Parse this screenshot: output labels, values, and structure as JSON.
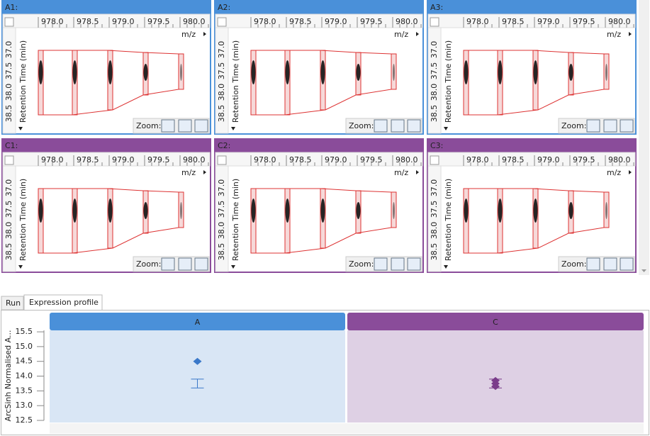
{
  "panels": [
    {
      "label": "A1:",
      "color": "#4a90d9"
    },
    {
      "label": "A2:",
      "color": "#4a90d9"
    },
    {
      "label": "A3:",
      "color": "#4a90d9"
    },
    {
      "label": "C1:",
      "color": "#8a4c9a"
    },
    {
      "label": "C2:",
      "color": "#8a4c9a"
    },
    {
      "label": "C3:",
      "color": "#8a4c9a"
    }
  ],
  "mz_axis": {
    "ticks": [
      "978.0",
      "978.5",
      "979.0",
      "979.5",
      "980.0"
    ],
    "label": "m/z"
  },
  "rt_axis": {
    "ticks": [
      "37.0",
      "37.5",
      "38.0",
      "38.5"
    ],
    "label": "Retention Time (min)"
  },
  "zoom_label": "Zoom:",
  "tabs": [
    "Run",
    "Expression profile"
  ],
  "profile": {
    "y_label": "ArcSinh Normalised A...",
    "ylim": [
      12.5,
      15.55
    ],
    "yticks": [
      {
        "value": 12.5,
        "label": "12.5"
      },
      {
        "value": 13,
        "label": "13.0"
      },
      {
        "value": 13.5,
        "label": "13.5"
      },
      {
        "value": 14,
        "label": "14.0"
      },
      {
        "value": 14.5,
        "label": "14.5"
      },
      {
        "value": 15,
        "label": "15.0"
      },
      {
        "value": 15.5,
        "label": "15.5"
      }
    ],
    "groups": [
      {
        "name": "A",
        "color": "#4a90d9",
        "background": "#d9e6f5",
        "marker": "#3a78c9",
        "points": [
          14.5
        ],
        "error": [
          13.6,
          13.9
        ]
      },
      {
        "name": "C",
        "color": "#8a4c9a",
        "background": "#ded0e4",
        "marker": "#7a3c8a",
        "points": [
          13.85,
          13.75,
          13.65
        ],
        "error": [
          13.6,
          13.9
        ]
      }
    ]
  }
}
